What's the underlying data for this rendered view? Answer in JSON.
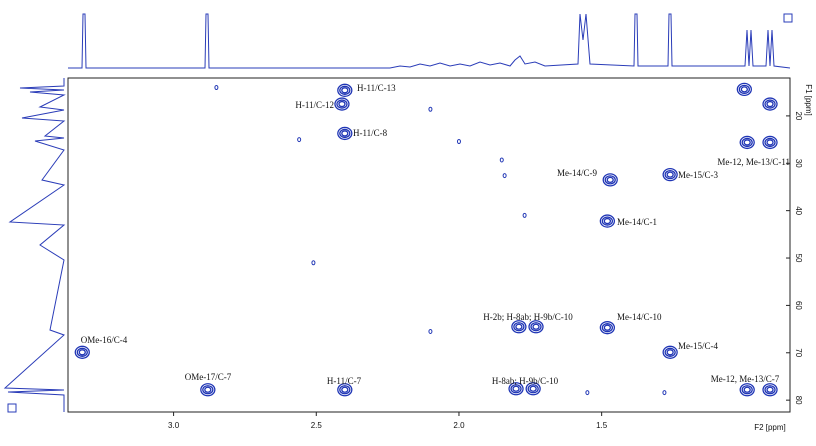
{
  "chart_data": {
    "type": "scatter",
    "x_label": "F2 [ppm]",
    "y_label": "F1 [ppm]",
    "xlim": [
      3.37,
      0.84
    ],
    "ylim": [
      12,
      82.5
    ],
    "xticks": [
      {
        "value": 3.0,
        "label": "3.0"
      },
      {
        "value": 2.5,
        "label": "2.5"
      },
      {
        "value": 2.0,
        "label": "2.0"
      },
      {
        "value": 1.5,
        "label": "1.5"
      }
    ],
    "yticks": [
      20,
      30,
      40,
      50,
      60,
      70,
      80
    ],
    "color": "#1f35b5",
    "x": [
      2.4,
      2.41,
      2.4,
      1.47,
      1.26,
      1.48,
      1.0,
      0.91,
      0.99,
      0.91,
      1.79,
      1.73,
      1.48,
      1.26,
      3.32,
      2.88,
      2.4,
      1.8,
      1.74,
      0.99,
      0.91,
      2.85,
      2.1,
      2.0,
      2.56,
      1.85,
      1.84,
      1.77,
      2.51,
      2.1,
      1.55,
      1.28
    ],
    "values": [
      14.6,
      17.5,
      23.7,
      33.5,
      32.4,
      42.2,
      14.4,
      17.5,
      25.6,
      25.6,
      64.5,
      64.5,
      64.7,
      69.9,
      69.9,
      77.8,
      77.8,
      77.6,
      77.6,
      77.8,
      77.8,
      14.0,
      18.6,
      25.4,
      25.0,
      29.3,
      32.6,
      41.0,
      51.0,
      65.5,
      78.4,
      78.4
    ],
    "annotations": [
      "H-11/C-13",
      "H-11/C-12",
      "H-11/C-8",
      "Me-12, Me-13/C-11",
      "Me-14/C-9",
      "Me-15/C-3",
      "Me-14/C-1",
      "H-2b; H-8ab; H-9b/C-10",
      "Me-14/C-10",
      "Me-15/C-4",
      "OMe-16/C-4",
      "OMe-17/C-7",
      "H-11/C-7",
      "H-8ab; H-9b/C-10",
      "Me-12, Me-13/C-7"
    ]
  }
}
